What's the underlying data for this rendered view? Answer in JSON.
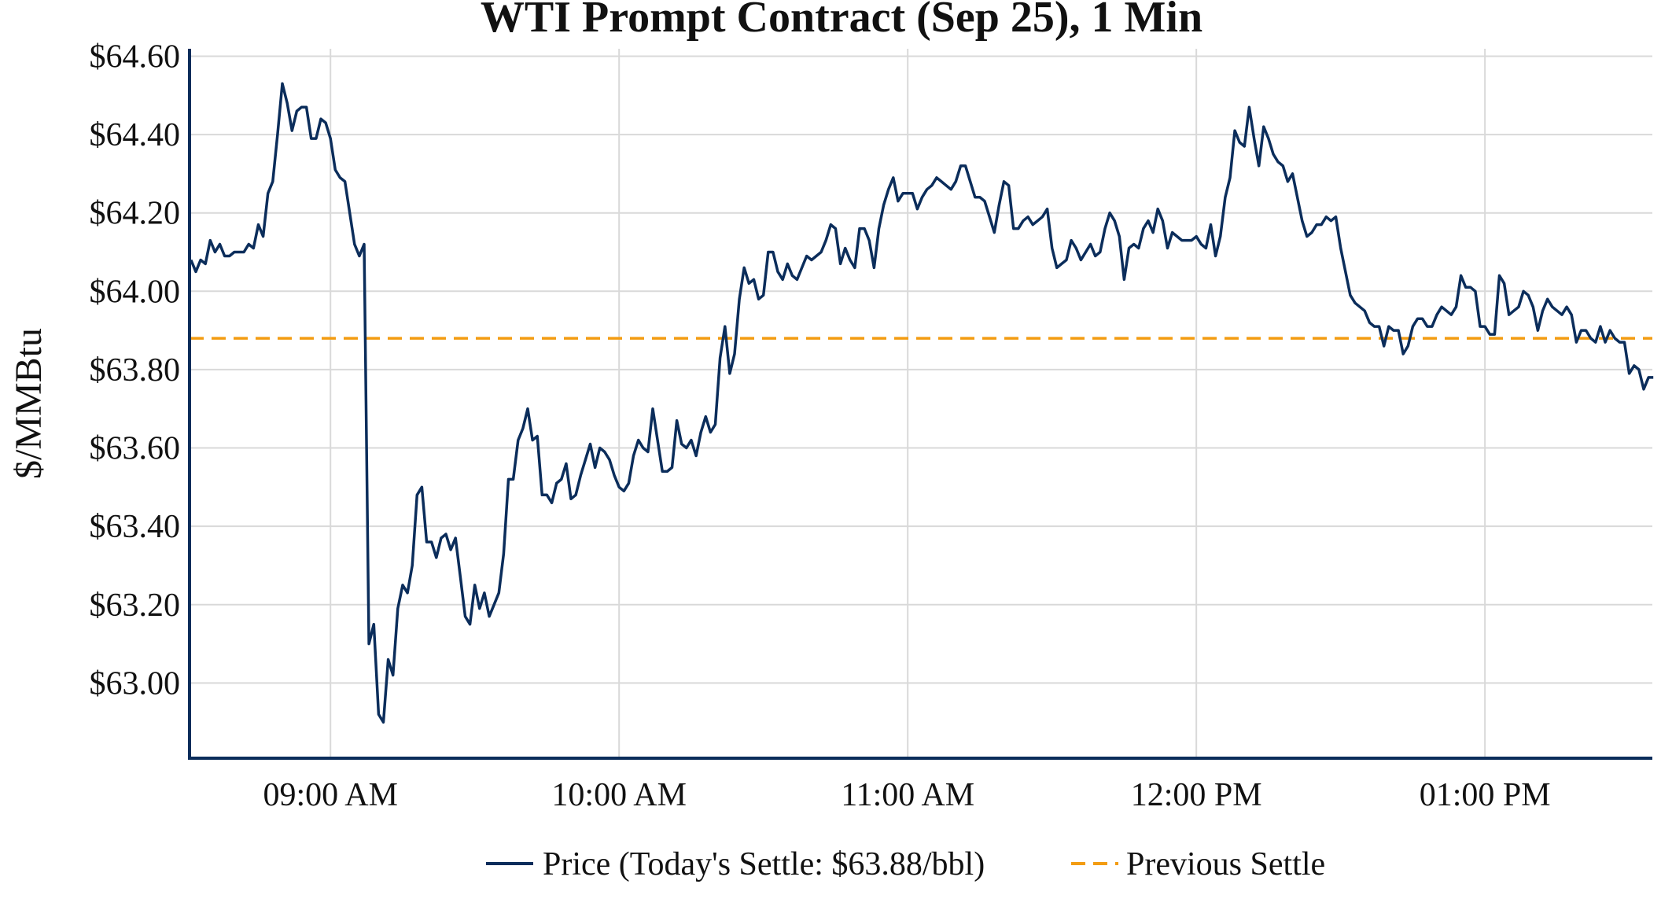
{
  "chart_data": {
    "type": "line",
    "title": "WTI Prompt Contract (Sep 25), 1 Min",
    "ylabel": "$/MMBtu",
    "xlabel": "",
    "ylim": [
      62.808,
      64.619
    ],
    "xlim": [
      "08:31",
      "13:35"
    ],
    "yticks": [
      63.0,
      63.2,
      63.4,
      63.6,
      63.8,
      64.0,
      64.2,
      64.4,
      64.6
    ],
    "ytick_labels": [
      "$63.00",
      "$63.20",
      "$63.40",
      "$63.60",
      "$63.80",
      "$64.00",
      "$64.20",
      "$64.40",
      "$64.60"
    ],
    "xticks": [
      "09:00",
      "10:00",
      "11:00",
      "12:00",
      "13:00"
    ],
    "xtick_labels": [
      "09:00 AM",
      "10:00 AM",
      "11:00 AM",
      "12:00 PM",
      "01:00 PM"
    ],
    "grid": true,
    "legend_position": "bottom",
    "colors": {
      "price": "#0b2d5b",
      "previous_settle": "#f39c12",
      "grid": "#d9d9d9",
      "axis": "#0b2d5b"
    },
    "series": [
      {
        "name": "Price (Today's Settle: $63.88/bbl)",
        "start": "08:31",
        "interval_minutes": 1,
        "values": [
          64.08,
          64.05,
          64.08,
          64.07,
          64.13,
          64.1,
          64.12,
          64.09,
          64.09,
          64.1,
          64.1,
          64.1,
          64.12,
          64.11,
          64.17,
          64.14,
          64.25,
          64.28,
          64.4,
          64.53,
          64.48,
          64.41,
          64.46,
          64.47,
          64.47,
          64.39,
          64.39,
          64.44,
          64.43,
          64.39,
          64.31,
          64.29,
          64.28,
          64.2,
          64.12,
          64.09,
          64.12,
          63.1,
          63.15,
          62.92,
          62.9,
          63.06,
          63.02,
          63.19,
          63.25,
          63.23,
          63.3,
          63.48,
          63.5,
          63.36,
          63.36,
          63.32,
          63.37,
          63.38,
          63.34,
          63.37,
          63.27,
          63.17,
          63.15,
          63.25,
          63.19,
          63.23,
          63.17,
          63.2,
          63.23,
          63.33,
          63.52,
          63.52,
          63.62,
          63.65,
          63.7,
          63.62,
          63.63,
          63.48,
          63.48,
          63.46,
          63.51,
          63.52,
          63.56,
          63.47,
          63.48,
          63.53,
          63.57,
          63.61,
          63.55,
          63.6,
          63.59,
          63.57,
          63.53,
          63.5,
          63.49,
          63.51,
          63.58,
          63.62,
          63.6,
          63.59,
          63.7,
          63.62,
          63.54,
          63.54,
          63.55,
          63.67,
          63.61,
          63.6,
          63.62,
          63.58,
          63.64,
          63.68,
          63.64,
          63.66,
          63.83,
          63.91,
          63.79,
          63.84,
          63.98,
          64.06,
          64.02,
          64.03,
          63.98,
          63.99,
          64.1,
          64.1,
          64.05,
          64.03,
          64.07,
          64.04,
          64.03,
          64.06,
          64.09,
          64.08,
          64.09,
          64.1,
          64.13,
          64.17,
          64.16,
          64.07,
          64.11,
          64.08,
          64.06,
          64.16,
          64.16,
          64.13,
          64.06,
          64.16,
          64.22,
          64.26,
          64.29,
          64.23,
          64.25,
          64.25,
          64.25,
          64.21,
          64.24,
          64.26,
          64.27,
          64.29,
          64.28,
          64.27,
          64.26,
          64.28,
          64.32,
          64.32,
          64.28,
          64.24,
          64.24,
          64.23,
          64.19,
          64.15,
          64.22,
          64.28,
          64.27,
          64.16,
          64.16,
          64.18,
          64.19,
          64.17,
          64.18,
          64.19,
          64.21,
          64.11,
          64.06,
          64.07,
          64.08,
          64.13,
          64.11,
          64.08,
          64.1,
          64.12,
          64.09,
          64.1,
          64.16,
          64.2,
          64.18,
          64.14,
          64.03,
          64.11,
          64.12,
          64.11,
          64.16,
          64.18,
          64.15,
          64.21,
          64.18,
          64.11,
          64.15,
          64.14,
          64.13,
          64.13,
          64.13,
          64.14,
          64.12,
          64.11,
          64.17,
          64.09,
          64.14,
          64.24,
          64.29,
          64.41,
          64.38,
          64.37,
          64.47,
          64.39,
          64.32,
          64.42,
          64.39,
          64.35,
          64.33,
          64.32,
          64.28,
          64.3,
          64.24,
          64.18,
          64.14,
          64.15,
          64.17,
          64.17,
          64.19,
          64.18,
          64.19,
          64.11,
          64.05,
          63.99,
          63.97,
          63.96,
          63.95,
          63.92,
          63.91,
          63.91,
          63.86,
          63.91,
          63.9,
          63.9,
          63.84,
          63.86,
          63.91,
          63.93,
          63.93,
          63.91,
          63.91,
          63.94,
          63.96,
          63.95,
          63.94,
          63.96,
          64.04,
          64.01,
          64.01,
          64.0,
          63.91,
          63.91,
          63.89,
          63.89,
          64.04,
          64.02,
          63.94,
          63.95,
          63.96,
          64.0,
          63.99,
          63.96,
          63.9,
          63.95,
          63.98,
          63.96,
          63.95,
          63.94,
          63.96,
          63.94,
          63.87,
          63.9,
          63.9,
          63.88,
          63.87,
          63.91,
          63.87,
          63.9,
          63.88,
          63.87,
          63.87,
          63.79,
          63.81,
          63.8,
          63.75,
          63.78,
          63.78
        ]
      },
      {
        "name": "Previous Settle",
        "value": 63.88,
        "style": "dashed"
      }
    ]
  }
}
